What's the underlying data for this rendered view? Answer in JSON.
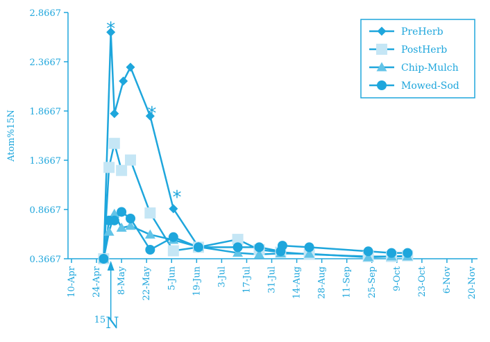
{
  "chart_data": {
    "type": "line",
    "title": "",
    "ylabel": "Atom%15N",
    "xlabel": "",
    "ylim": [
      0.3667,
      2.8667
    ],
    "y_ticks": [
      "0.3667",
      "0.8667",
      "1.3667",
      "1.8667",
      "2.3667",
      "2.8667"
    ],
    "x_ticks": [
      "10-Apr",
      "24-Apr",
      "8-May",
      "22-May",
      "5-Jun",
      "19-Jun",
      "3-Jul",
      "17-Jul",
      "31-Jul",
      "14-Aug",
      "28-Aug",
      "11-Sep",
      "25-Sep",
      "9-Oct",
      "23-Oct",
      "6-Nov",
      "20-Nov"
    ],
    "x_tick_dates": [
      "2000-04-10",
      "2000-04-24",
      "2000-05-08",
      "2000-05-22",
      "2000-06-05",
      "2000-06-19",
      "2000-07-03",
      "2000-07-17",
      "2000-07-31",
      "2000-08-14",
      "2000-08-28",
      "2000-09-11",
      "2000-09-25",
      "2000-10-09",
      "2000-10-23",
      "2000-11-06",
      "2000-11-20"
    ],
    "grid": false,
    "legend_position": "top-right",
    "color": "#1ea6dc",
    "light_color": "#c5e6f5",
    "annotation_text": "15N",
    "annotation_date": "2000-05-02",
    "significance_marker": "*",
    "significance_dates": [
      "2000-05-02",
      "2000-05-25",
      "2000-06-08"
    ],
    "significance_values": [
      2.74,
      1.88,
      1.03
    ],
    "series": [
      {
        "name": "PreHerb",
        "marker": "diamond",
        "dates": [
          "2000-04-28",
          "2000-05-02",
          "2000-05-04",
          "2000-05-09",
          "2000-05-13",
          "2000-05-24",
          "2000-06-06",
          "2000-06-20"
        ],
        "values": [
          0.3667,
          2.6667,
          1.8405,
          2.1702,
          2.3112,
          1.8153,
          0.8746,
          0.4874
        ]
      },
      {
        "name": "PostHerb",
        "marker": "square",
        "dates": [
          "2000-04-28",
          "2000-05-01",
          "2000-05-04",
          "2000-05-08",
          "2000-05-13",
          "2000-05-24",
          "2000-06-06",
          "2000-06-20",
          "2000-07-12",
          "2000-07-24",
          "2000-08-05",
          "2000-08-21",
          "2000-09-23",
          "2000-10-06",
          "2000-10-15"
        ],
        "values": [
          0.3667,
          1.2939,
          1.5378,
          1.2632,
          1.3689,
          0.8313,
          0.4477,
          0.4838,
          0.5633,
          0.4584,
          0.4333,
          0.4115,
          0.3896,
          0.3896,
          0.3974
        ]
      },
      {
        "name": "Chip-Mulch",
        "marker": "triangle",
        "dates": [
          "2000-04-28",
          "2000-05-01",
          "2000-05-04",
          "2000-05-08",
          "2000-05-13",
          "2000-05-24",
          "2000-06-06",
          "2000-06-20",
          "2000-07-12",
          "2000-07-24",
          "2000-08-05",
          "2000-08-21",
          "2000-09-23",
          "2000-10-06",
          "2000-10-15"
        ],
        "values": [
          0.3667,
          0.6408,
          0.8214,
          0.6807,
          0.7004,
          0.6118,
          0.5575,
          0.4874,
          0.4262,
          0.4107,
          0.4205,
          0.4165,
          0.3818,
          0.3896,
          0.3896
        ]
      },
      {
        "name": "Mowed-Sod",
        "marker": "circle",
        "dates": [
          "2000-04-28",
          "2000-05-01",
          "2000-05-04",
          "2000-05-08",
          "2000-05-13",
          "2000-05-24",
          "2000-06-06",
          "2000-06-20",
          "2000-07-12",
          "2000-07-24",
          "2000-08-05",
          "2000-08-06",
          "2000-08-21",
          "2000-09-23",
          "2000-10-06",
          "2000-10-15"
        ],
        "values": [
          0.3667,
          0.7553,
          0.7553,
          0.8422,
          0.7751,
          0.4582,
          0.5865,
          0.4838,
          0.4838,
          0.4838,
          0.442,
          0.5,
          0.4838,
          0.442,
          0.4257,
          0.4257
        ]
      }
    ]
  }
}
